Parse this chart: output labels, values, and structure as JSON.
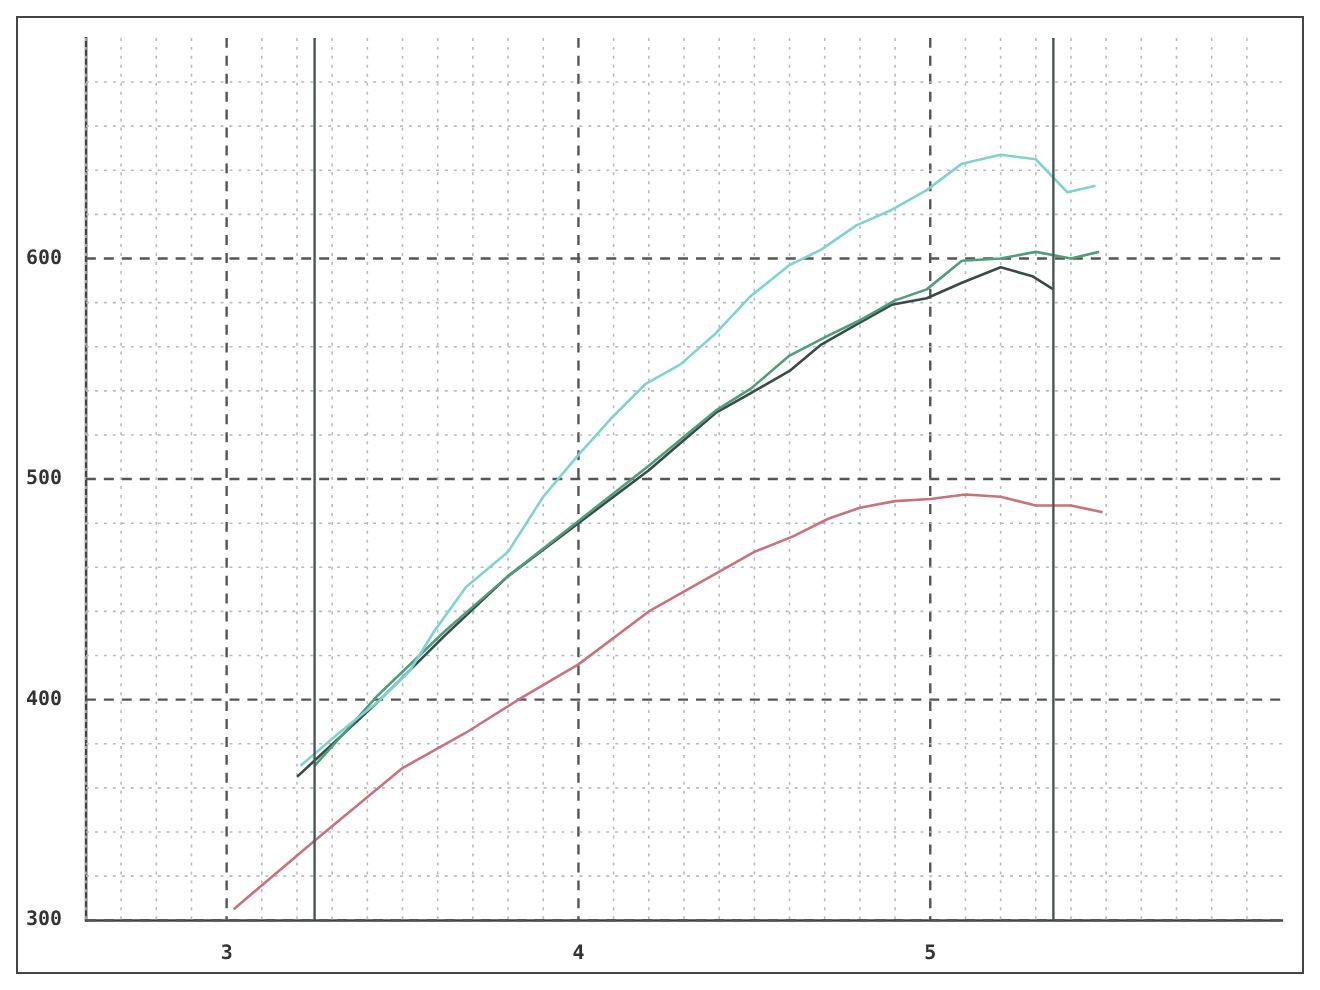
{
  "chart_data": {
    "type": "line",
    "series": [
      {
        "color": "#7fd3cf",
        "x": [
          3.21,
          3.32,
          3.43,
          3.52,
          3.59,
          3.68,
          3.8,
          3.9,
          4.0,
          4.09,
          4.19,
          4.29,
          4.39,
          4.49,
          4.6,
          4.69,
          4.79,
          4.89,
          4.99,
          5.09,
          5.2,
          5.3,
          5.39,
          5.47
        ],
        "values": [
          370,
          385,
          399,
          413,
          431,
          451,
          467,
          492,
          511,
          527,
          543,
          552,
          566,
          583,
          597,
          604,
          615,
          622,
          631,
          643,
          647,
          645,
          630,
          633
        ]
      },
      {
        "color": "#4f9e7a",
        "x": [
          3.25,
          3.34,
          3.43,
          3.62,
          3.8,
          4.0,
          4.2,
          4.39,
          4.49,
          4.6,
          4.71,
          4.8,
          4.9,
          4.99,
          5.09,
          5.2,
          5.3,
          5.4,
          5.48
        ],
        "values": [
          370,
          386,
          402,
          431,
          456,
          481,
          506,
          531,
          541,
          556,
          565,
          572,
          581,
          586,
          599,
          600,
          603,
          600,
          603
        ]
      },
      {
        "color": "#3a4a48",
        "x": [
          3.2,
          3.43,
          3.62,
          3.8,
          4.0,
          4.2,
          4.39,
          4.49,
          4.6,
          4.69,
          4.79,
          4.89,
          4.99,
          5.09,
          5.2,
          5.29,
          5.35
        ],
        "values": [
          365,
          399,
          429,
          456,
          480,
          504,
          530,
          539,
          549,
          561,
          570,
          579,
          582,
          589,
          596,
          592,
          586
        ]
      },
      {
        "color": "#c8737a",
        "x": [
          3.02,
          3.25,
          3.5,
          3.68,
          3.84,
          4.0,
          4.2,
          4.5,
          4.61,
          4.71,
          4.8,
          4.9,
          5.0,
          5.1,
          5.2,
          5.3,
          5.4,
          5.49
        ],
        "values": [
          305,
          336,
          369,
          385,
          401,
          416,
          440,
          467,
          474,
          482,
          487,
          490,
          491,
          493,
          492,
          488,
          488,
          485
        ]
      }
    ],
    "xlim": [
      2.6,
      6.0
    ],
    "xticks": [
      {
        "value": 2.6,
        "label": null
      },
      {
        "value": 2.7,
        "label": null
      },
      {
        "value": 2.8,
        "label": null
      },
      {
        "value": 2.9,
        "label": null
      },
      3,
      {
        "value": 3.1,
        "label": null
      },
      {
        "value": 3.2,
        "label": null
      },
      {
        "value": 3.3,
        "label": null
      },
      {
        "value": 3.4,
        "label": null
      },
      {
        "value": 3.5,
        "label": null
      },
      {
        "value": 3.6,
        "label": null
      },
      {
        "value": 3.7,
        "label": null
      },
      {
        "value": 3.8,
        "label": null
      },
      {
        "value": 3.9,
        "label": null
      },
      4,
      {
        "value": 4.1,
        "label": null
      },
      {
        "value": 4.2,
        "label": null
      },
      {
        "value": 4.3,
        "label": null
      },
      {
        "value": 4.4,
        "label": null
      },
      {
        "value": 4.5,
        "label": null
      },
      {
        "value": 4.6,
        "label": null
      },
      {
        "value": 4.7,
        "label": null
      },
      {
        "value": 4.8,
        "label": null
      },
      {
        "value": 4.9,
        "label": null
      },
      5,
      {
        "value": 5.1,
        "label": null
      },
      {
        "value": 5.2,
        "label": null
      },
      {
        "value": 5.3,
        "label": null
      },
      {
        "value": 5.4,
        "label": null
      },
      {
        "value": 5.5,
        "label": null
      },
      {
        "value": 5.6,
        "label": null
      },
      {
        "value": 5.7,
        "label": null
      },
      {
        "value": 5.8,
        "label": null
      },
      {
        "value": 5.9,
        "label": null
      }
    ],
    "ylim": [
      300,
      700
    ],
    "yticks": [
      300,
      {
        "value": 320,
        "label": null
      },
      {
        "value": 340,
        "label": null
      },
      {
        "value": 360,
        "label": null
      },
      {
        "value": 380,
        "label": null
      },
      400,
      {
        "value": 420,
        "label": null
      },
      {
        "value": 440,
        "label": null
      },
      {
        "value": 460,
        "label": null
      },
      {
        "value": 480,
        "label": null
      },
      500,
      {
        "value": 520,
        "label": null
      },
      {
        "value": 540,
        "label": null
      },
      {
        "value": 560,
        "label": null
      },
      {
        "value": 580,
        "label": null
      },
      600,
      {
        "value": 620,
        "label": null
      },
      {
        "value": 640,
        "label": null
      },
      {
        "value": 660,
        "label": null
      },
      {
        "value": 680,
        "label": null
      }
    ],
    "ref_lines": [
      {
        "axis": "x",
        "value": 3.25,
        "color": "#4a5555"
      },
      {
        "axis": "x",
        "value": 5.35,
        "color": "#4a5555"
      }
    ],
    "grid": true,
    "legend": false,
    "marker": "none",
    "line_style": "solid"
  }
}
